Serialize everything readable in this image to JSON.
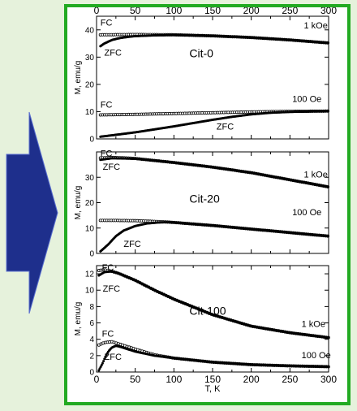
{
  "colors": {
    "page_background": "#e6f2dc",
    "frame_border": "#22aa22",
    "arrow_fill": "#1e2f8c",
    "arrow_edge": "#5a6fd0",
    "data_color": "#000000"
  },
  "chart_data": [
    {
      "type": "scatter",
      "title": "Cit-0",
      "xlabel": "T, K",
      "ylabel": "M, emu/g",
      "xlim": [
        0,
        300
      ],
      "ylim": [
        0,
        45
      ],
      "x_ticks": [
        0,
        50,
        100,
        150,
        200,
        250,
        300
      ],
      "x_tick_labels": [
        "0",
        "50",
        "100",
        "150",
        "200",
        "250",
        "300"
      ],
      "x_tick_labels_position": "top",
      "y_ticks": [
        0,
        10,
        20,
        30,
        40
      ],
      "y_tick_labels": [
        "0",
        "10",
        "20",
        "30",
        "40"
      ],
      "annotations": [
        "FC",
        "ZFC",
        "1 kOe",
        "FC",
        "100 Oe",
        "ZFC"
      ],
      "series": [
        {
          "name": "FC",
          "field": "1 kOe",
          "style": "open-circles",
          "x": [
            5,
            50,
            100,
            150,
            200,
            250,
            300
          ],
          "values": [
            38.2,
            38.3,
            38.2,
            37.8,
            37.2,
            36.3,
            35.2
          ]
        },
        {
          "name": "ZFC",
          "field": "1 kOe",
          "style": "filled",
          "x": [
            5,
            10,
            20,
            30,
            40,
            50,
            75,
            100,
            150,
            200,
            250,
            300
          ],
          "values": [
            34.0,
            35.0,
            36.3,
            37.0,
            37.4,
            37.7,
            38.0,
            38.1,
            37.8,
            37.2,
            36.3,
            35.2
          ]
        },
        {
          "name": "FC",
          "field": "100 Oe",
          "style": "open-circles",
          "x": [
            5,
            50,
            100,
            150,
            200,
            250,
            300
          ],
          "values": [
            8.8,
            9.0,
            9.3,
            9.6,
            9.9,
            10.1,
            10.2
          ]
        },
        {
          "name": "ZFC",
          "field": "100 Oe",
          "style": "filled",
          "x": [
            5,
            25,
            50,
            75,
            100,
            125,
            150,
            175,
            200,
            225,
            250,
            300
          ],
          "values": [
            0.8,
            1.5,
            2.4,
            3.5,
            4.6,
            5.8,
            7.0,
            8.1,
            9.0,
            9.6,
            9.9,
            10.2
          ]
        }
      ]
    },
    {
      "type": "scatter",
      "title": "Cit-20",
      "xlabel": "T, K",
      "ylabel": "M, emu/g",
      "xlim": [
        0,
        300
      ],
      "ylim": [
        0,
        40
      ],
      "y_ticks": [
        0,
        10,
        20,
        30
      ],
      "y_tick_labels": [
        "0",
        "10",
        "20",
        "30"
      ],
      "annotations": [
        "FC",
        "ZFC",
        "1 kOe",
        "100 Oe",
        "ZFC"
      ],
      "series": [
        {
          "name": "FC",
          "field": "1 kOe",
          "style": "open-circles",
          "x": [
            5,
            20,
            40,
            50,
            100,
            150,
            200,
            250,
            300
          ],
          "values": [
            37.6,
            37.8,
            37.6,
            37.4,
            35.8,
            34.0,
            31.8,
            29.0,
            26.2
          ]
        },
        {
          "name": "ZFC",
          "field": "1 kOe",
          "style": "filled",
          "x": [
            5,
            20,
            50,
            100,
            150,
            200,
            250,
            300
          ],
          "values": [
            36.9,
            37.5,
            37.3,
            35.8,
            34.0,
            31.8,
            29.0,
            26.2
          ]
        },
        {
          "name": "FC",
          "field": "100 Oe",
          "style": "open-circles",
          "x": [
            5,
            25,
            50,
            75,
            90,
            100,
            150,
            200,
            250,
            300
          ],
          "values": [
            13.0,
            13.0,
            12.9,
            12.6,
            12.4,
            12.2,
            11.0,
            9.6,
            8.2,
            6.8
          ]
        },
        {
          "name": "ZFC",
          "field": "100 Oe",
          "style": "filled",
          "x": [
            5,
            15,
            25,
            35,
            50,
            65,
            80,
            90,
            100,
            150,
            200,
            250,
            300
          ],
          "values": [
            0.8,
            3.5,
            6.8,
            9.0,
            10.8,
            11.8,
            12.2,
            12.3,
            12.2,
            11.0,
            9.6,
            8.2,
            6.8
          ]
        }
      ]
    },
    {
      "type": "scatter",
      "title": "Cit-100",
      "xlabel": "T, K",
      "ylabel": "M, emu/g",
      "xlim": [
        0,
        300
      ],
      "ylim": [
        0,
        13
      ],
      "x_ticks": [
        0,
        50,
        100,
        150,
        200,
        250,
        300
      ],
      "x_tick_labels": [
        "0",
        "50",
        "100",
        "150",
        "200",
        "250",
        "300"
      ],
      "y_ticks": [
        0,
        2,
        4,
        6,
        8,
        10,
        12
      ],
      "y_tick_labels": [
        "0",
        "2",
        "4",
        "6",
        "8",
        "10",
        "12"
      ],
      "annotations": [
        "FC",
        "ZFC",
        "1 kOe",
        "FC",
        "ZFC",
        "100 Oe"
      ],
      "series": [
        {
          "name": "FC",
          "field": "1 kOe",
          "style": "open-circles",
          "x": [
            3,
            10,
            20,
            30,
            50,
            75,
            100,
            150,
            200,
            250,
            300
          ],
          "values": [
            12.4,
            12.5,
            12.3,
            12.0,
            11.2,
            10.0,
            8.9,
            7.0,
            5.6,
            4.8,
            4.2
          ]
        },
        {
          "name": "ZFC",
          "field": "1 kOe",
          "style": "filled",
          "x": [
            3,
            10,
            20,
            30,
            50,
            75,
            100,
            150,
            200,
            250,
            300
          ],
          "values": [
            11.8,
            12.2,
            12.3,
            12.0,
            11.2,
            10.0,
            8.9,
            7.0,
            5.6,
            4.8,
            4.2
          ]
        },
        {
          "name": "FC",
          "field": "100 Oe",
          "style": "open-circles",
          "x": [
            3,
            10,
            20,
            30,
            50,
            75,
            100,
            150,
            200,
            250,
            300
          ],
          "values": [
            3.3,
            3.6,
            3.7,
            3.4,
            2.8,
            2.1,
            1.7,
            1.2,
            0.9,
            0.75,
            0.65
          ]
        },
        {
          "name": "ZFC",
          "field": "100 Oe",
          "style": "filled",
          "x": [
            3,
            8,
            12,
            16,
            20,
            25,
            30,
            40,
            50,
            75,
            100,
            150,
            200,
            250,
            300
          ],
          "values": [
            0.2,
            1.1,
            2.0,
            2.6,
            3.0,
            3.2,
            3.1,
            2.8,
            2.5,
            2.0,
            1.7,
            1.2,
            0.9,
            0.75,
            0.65
          ]
        }
      ]
    }
  ]
}
